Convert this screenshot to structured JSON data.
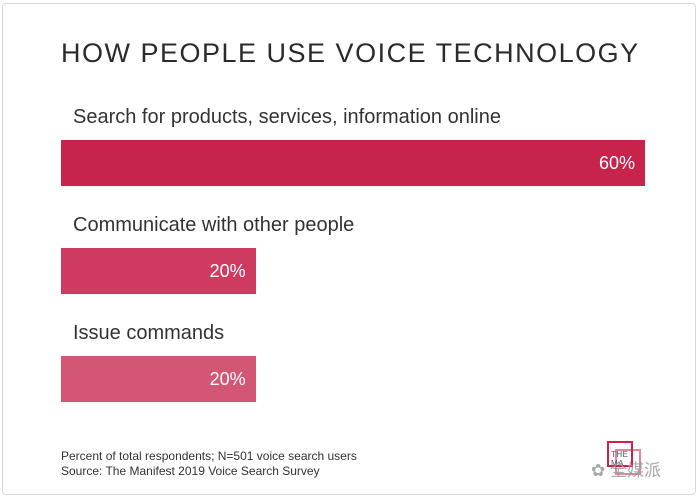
{
  "chart_data": {
    "type": "bar",
    "orientation": "horizontal",
    "title": "HOW PEOPLE USE VOICE TECHNOLOGY",
    "categories": [
      "Search for products, services, information online",
      "Communicate with other people",
      "Issue commands"
    ],
    "values": [
      60,
      20,
      20
    ],
    "value_labels": [
      "60%",
      "20%",
      "20%"
    ],
    "unit": "%",
    "xlim": [
      0,
      60
    ],
    "grid": false,
    "legend": "none",
    "bar_colors": [
      "#c8234c",
      "#cf3a60",
      "#d35675"
    ]
  },
  "footnote": {
    "line1": "Percent of total respondents; N=501 voice search users",
    "line2": "Source: The Manifest 2019 Voice Search Survey"
  },
  "logo": {
    "text": "THE MA"
  },
  "watermark": {
    "text": "全媒派"
  }
}
